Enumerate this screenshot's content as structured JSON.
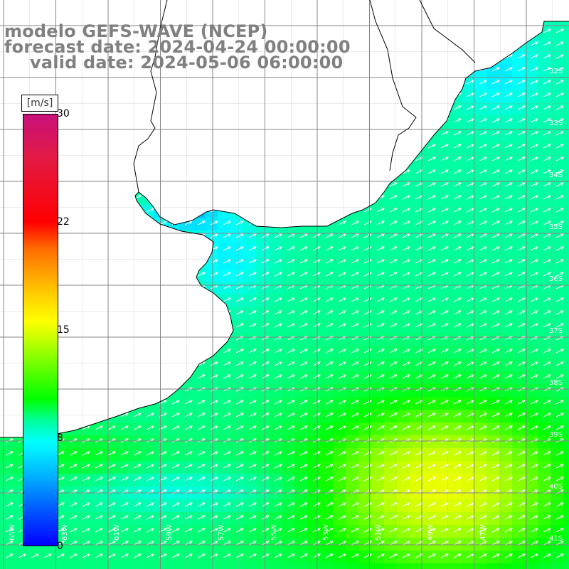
{
  "title": {
    "line1": "modelo GEFS-WAVE (NCEP)",
    "line2": "forecast date: 2024-04-24 00:00:00",
    "line3": "valid date: 2024-05-06 06:00:00"
  },
  "colorbar": {
    "units": "[m/s]",
    "ticks": [
      "30",
      "22",
      "15",
      "8",
      "0"
    ],
    "range": [
      0,
      30
    ],
    "colors": [
      "#0000ff",
      "#00ffff",
      "#00ff00",
      "#ffff00",
      "#ff0000",
      "#c8107a"
    ]
  },
  "lat_labels": [
    "32S",
    "33S",
    "34S",
    "35S",
    "36S",
    "37S",
    "38S",
    "39S",
    "40S",
    "41S"
  ],
  "lon_labels": [
    "65W",
    "63W",
    "61W",
    "59W",
    "57W",
    "55W",
    "53W",
    "51W",
    "49W",
    "47W"
  ],
  "field": {
    "variable": "wind speed",
    "units": "m/s",
    "land_color": "#ffffff",
    "grid_color": "#808080"
  }
}
